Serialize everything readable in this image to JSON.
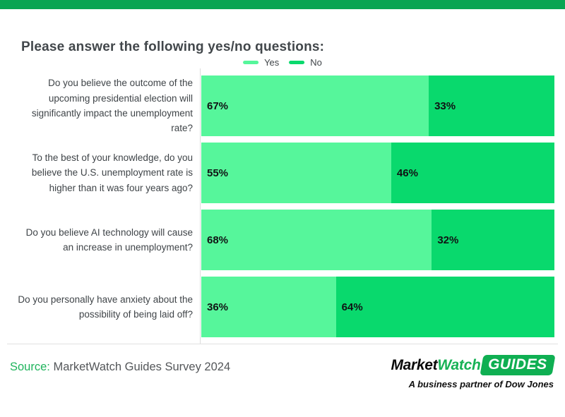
{
  "banner": {
    "color": "#0AA552"
  },
  "title": "Please answer the following yes/no questions:",
  "legend": {
    "items": [
      {
        "label": "Yes",
        "color": "#56F69B"
      },
      {
        "label": "No",
        "color": "#09D96D"
      }
    ]
  },
  "chart_data": {
    "type": "bar",
    "orientation": "horizontal",
    "stacked": true,
    "unit": "percent",
    "legend_position": "top-center",
    "categories": [
      "Do you believe the outcome of the upcoming presidential election will significantly impact the unemployment rate?",
      "To the best of your knowledge, do you believe the U.S. unemployment rate is higher than it was four years ago?",
      "Do you believe AI technology will cause an increase in unemployment?",
      "Do you personally have anxiety about the possibility of being laid off?"
    ],
    "series": [
      {
        "name": "Yes",
        "color": "#56F69B",
        "values": [
          67,
          55,
          68,
          36
        ]
      },
      {
        "name": "No",
        "color": "#09D96D",
        "values": [
          33,
          46,
          32,
          64
        ]
      }
    ],
    "title": "Please answer the following yes/no questions:"
  },
  "rows": [
    {
      "question": "Do you believe the outcome of the upcoming presidential election will significantly impact the unemployment rate?",
      "yes": 67,
      "no": 33,
      "yes_label": "67%",
      "no_label": "33%"
    },
    {
      "question": "To the best of your knowledge, do you believe the U.S. unemployment rate is higher than it was four years ago?",
      "yes": 55,
      "no": 46,
      "yes_label": "55%",
      "no_label": "46%"
    },
    {
      "question": "Do you believe AI technology will cause an increase in unemployment?",
      "yes": 68,
      "no": 32,
      "yes_label": "68%",
      "no_label": "32%"
    },
    {
      "question": "Do you personally have anxiety about the possibility of being laid off?",
      "yes": 36,
      "no": 64,
      "yes_label": "36%",
      "no_label": "64%"
    }
  ],
  "footer": {
    "source_prefix": "Source:",
    "source_text": " MarketWatch Guides Survey 2024",
    "logo": {
      "part1": "Market",
      "part2": "Watch",
      "badge": "GUIDES",
      "tagline": "A business partner of Dow Jones"
    }
  }
}
